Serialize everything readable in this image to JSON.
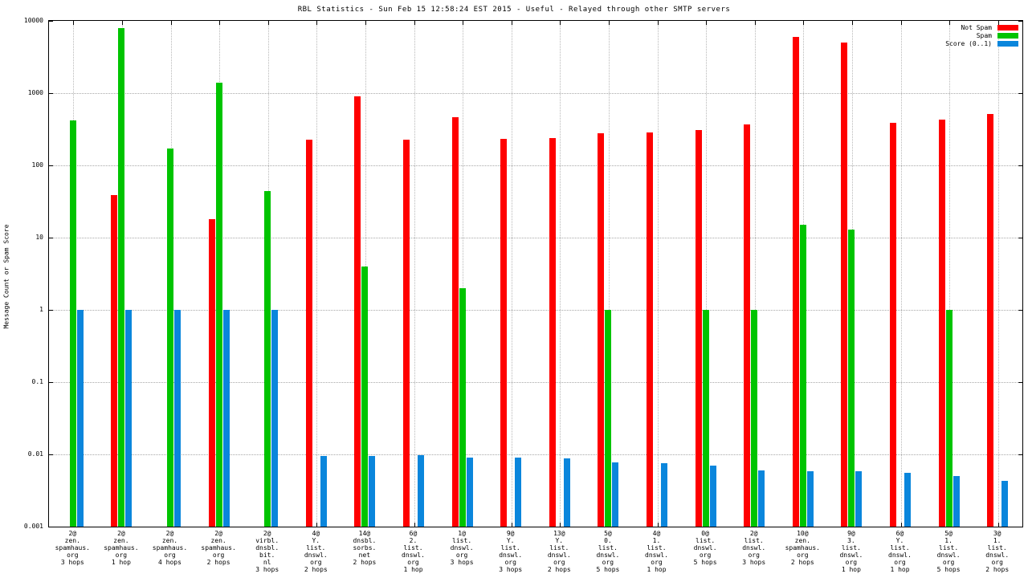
{
  "chart_data": {
    "type": "bar",
    "title": "RBL Statistics - Sun Feb 15 12:58:24 EST 2015 - Useful - Relayed through other SMTP servers",
    "ylabel": "Message Count or Spam Score",
    "yscale": "log",
    "ylim": [
      0.001,
      10000
    ],
    "yticks": [
      0.001,
      0.01,
      0.1,
      1,
      10,
      100,
      1000,
      10000
    ],
    "grid": true,
    "legend_position": "top-right",
    "categories": [
      [
        "2@",
        "zen.",
        "spamhaus.",
        "org",
        "3 hops"
      ],
      [
        "2@",
        "zen.",
        "spamhaus.",
        "org",
        "1 hop"
      ],
      [
        "2@",
        "zen.",
        "spamhaus.",
        "org",
        "4 hops"
      ],
      [
        "2@",
        "zen.",
        "spamhaus.",
        "org",
        "2 hops"
      ],
      [
        "2@",
        "virbl.",
        "dnsbl.",
        "bit.",
        "nl",
        "3 hops"
      ],
      [
        "4@",
        "Y.",
        "list.",
        "dnswl.",
        "org",
        "2 hops"
      ],
      [
        "14@",
        "dnsbl.",
        "sorbs.",
        "net",
        "2 hops"
      ],
      [
        "6@",
        "2.",
        "list.",
        "dnswl.",
        "org",
        "1 hop"
      ],
      [
        "1@",
        "list.",
        "dnswl.",
        "org",
        "3 hops"
      ],
      [
        "9@",
        "Y.",
        "list.",
        "dnswl.",
        "org",
        "3 hops"
      ],
      [
        "13@",
        "Y.",
        "list.",
        "dnswl.",
        "org",
        "2 hops"
      ],
      [
        "5@",
        "0.",
        "list.",
        "dnswl.",
        "org",
        "5 hops"
      ],
      [
        "4@",
        "1.",
        "list.",
        "dnswl.",
        "org",
        "1 hop"
      ],
      [
        "0@",
        "list.",
        "dnswl.",
        "org",
        "5 hops"
      ],
      [
        "2@",
        "list.",
        "dnswl.",
        "org",
        "3 hops"
      ],
      [
        "10@",
        "zen.",
        "spamhaus.",
        "org",
        "2 hops"
      ],
      [
        "9@",
        "3.",
        "list.",
        "dnswl.",
        "org",
        "1 hop"
      ],
      [
        "6@",
        "Y.",
        "list.",
        "dnswl.",
        "org",
        "1 hop"
      ],
      [
        "5@",
        "1.",
        "list.",
        "dnswl.",
        "org",
        "5 hops"
      ],
      [
        "3@",
        "1.",
        "list.",
        "dnswl.",
        "org",
        "2 hops"
      ]
    ],
    "series": [
      {
        "name": "Not Spam",
        "color": "#ff0000",
        "values": [
          0,
          39,
          0,
          18,
          0,
          225,
          900,
          225,
          470,
          235,
          240,
          275,
          285,
          305,
          370,
          6000,
          5000,
          390,
          430,
          520
        ]
      },
      {
        "name": "Spam",
        "color": "#00c400",
        "values": [
          420,
          8000,
          170,
          1400,
          44,
          0,
          4,
          0,
          2,
          0,
          0,
          1,
          0,
          1,
          1,
          15,
          13,
          0,
          1,
          0
        ]
      },
      {
        "name": "Score (0..1)",
        "color": "#0a86dc",
        "values": [
          1,
          1,
          1,
          1,
          1,
          0.0095,
          0.0095,
          0.0098,
          0.009,
          0.009,
          0.0088,
          0.0077,
          0.0075,
          0.007,
          0.006,
          0.0058,
          0.0058,
          0.0055,
          0.005,
          0.0043
        ]
      }
    ]
  }
}
